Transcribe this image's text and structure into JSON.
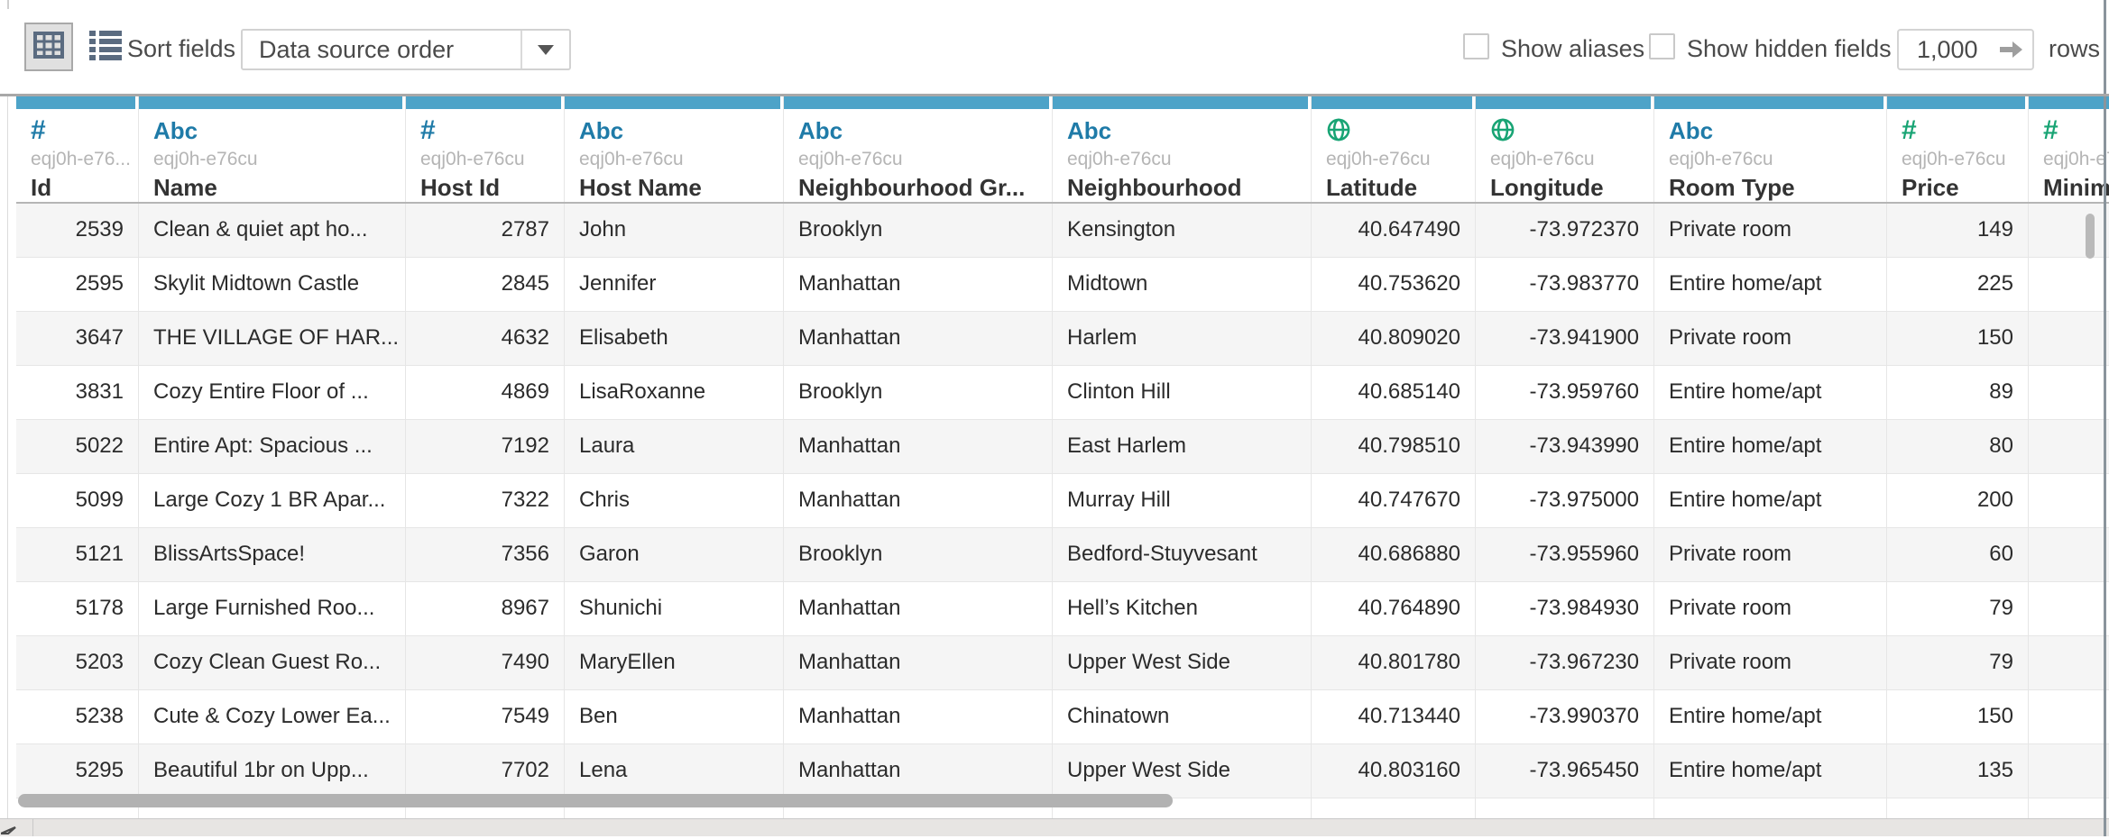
{
  "toolbar": {
    "sort_fields_label": "Sort fields",
    "sort_order": {
      "value": "Data source order"
    },
    "show_aliases": {
      "label": "Show aliases",
      "checked": false
    },
    "show_hidden_fields": {
      "label": "Show hidden fields",
      "checked": false
    },
    "row_limit": {
      "value": "1,000"
    },
    "rows_label": "rows"
  },
  "colors": {
    "column_accent_bar": "#4da3c8",
    "dimension_blue": "#1f7ba8",
    "measure_green": "#18a474",
    "toolbar_icon_slate": "#5a6b80"
  },
  "table": {
    "columns": [
      {
        "name": "Id",
        "field_id": "eqj0h-e76...",
        "icon": "number-sign",
        "role": "blue",
        "align": "right"
      },
      {
        "name": "Name",
        "field_id": "eqj0h-e76cu",
        "icon": "abc",
        "role": "blue",
        "align": "left"
      },
      {
        "name": "Host Id",
        "field_id": "eqj0h-e76cu",
        "icon": "number-sign",
        "role": "blue",
        "align": "right"
      },
      {
        "name": "Host Name",
        "field_id": "eqj0h-e76cu",
        "icon": "abc",
        "role": "blue",
        "align": "left"
      },
      {
        "name": "Neighbourhood Gr...",
        "field_id": "eqj0h-e76cu",
        "icon": "abc",
        "role": "blue",
        "align": "left"
      },
      {
        "name": "Neighbourhood",
        "field_id": "eqj0h-e76cu",
        "icon": "abc",
        "role": "blue",
        "align": "left"
      },
      {
        "name": "Latitude",
        "field_id": "eqj0h-e76cu",
        "icon": "globe",
        "role": "green",
        "align": "right"
      },
      {
        "name": "Longitude",
        "field_id": "eqj0h-e76cu",
        "icon": "globe",
        "role": "green",
        "align": "right"
      },
      {
        "name": "Room Type",
        "field_id": "eqj0h-e76cu",
        "icon": "abc",
        "role": "blue",
        "align": "left"
      },
      {
        "name": "Price",
        "field_id": "eqj0h-e76cu",
        "icon": "number-sign",
        "role": "green",
        "align": "right"
      },
      {
        "name": "Minim",
        "field_id": "eqj0h-e7",
        "icon": "number-sign",
        "role": "green",
        "align": "left"
      }
    ],
    "rows": [
      [
        "2539",
        "Clean & quiet apt ho...",
        "2787",
        "John",
        "Brooklyn",
        "Kensington",
        "40.647490",
        "-73.972370",
        "Private room",
        "149"
      ],
      [
        "2595",
        "Skylit Midtown Castle",
        "2845",
        "Jennifer",
        "Manhattan",
        "Midtown",
        "40.753620",
        "-73.983770",
        "Entire home/apt",
        "225"
      ],
      [
        "3647",
        "THE VILLAGE OF HAR...",
        "4632",
        "Elisabeth",
        "Manhattan",
        "Harlem",
        "40.809020",
        "-73.941900",
        "Private room",
        "150"
      ],
      [
        "3831",
        "Cozy Entire Floor of ...",
        "4869",
        "LisaRoxanne",
        "Brooklyn",
        "Clinton Hill",
        "40.685140",
        "-73.959760",
        "Entire home/apt",
        "89"
      ],
      [
        "5022",
        "Entire Apt: Spacious ...",
        "7192",
        "Laura",
        "Manhattan",
        "East Harlem",
        "40.798510",
        "-73.943990",
        "Entire home/apt",
        "80"
      ],
      [
        "5099",
        "Large Cozy 1 BR Apar...",
        "7322",
        "Chris",
        "Manhattan",
        "Murray Hill",
        "40.747670",
        "-73.975000",
        "Entire home/apt",
        "200"
      ],
      [
        "5121",
        "BlissArtsSpace!",
        "7356",
        "Garon",
        "Brooklyn",
        "Bedford-Stuyvesant",
        "40.686880",
        "-73.955960",
        "Private room",
        "60"
      ],
      [
        "5178",
        "Large Furnished Roo...",
        "8967",
        "Shunichi",
        "Manhattan",
        "Hell’s Kitchen",
        "40.764890",
        "-73.984930",
        "Private room",
        "79"
      ],
      [
        "5203",
        "Cozy Clean Guest Ro...",
        "7490",
        "MaryEllen",
        "Manhattan",
        "Upper West Side",
        "40.801780",
        "-73.967230",
        "Private room",
        "79"
      ],
      [
        "5238",
        "Cute & Cozy Lower Ea...",
        "7549",
        "Ben",
        "Manhattan",
        "Chinatown",
        "40.713440",
        "-73.990370",
        "Entire home/apt",
        "150"
      ],
      [
        "5295",
        "Beautiful 1br on Upp...",
        "7702",
        "Lena",
        "Manhattan",
        "Upper West Side",
        "40.803160",
        "-73.965450",
        "Entire home/apt",
        "135"
      ]
    ]
  }
}
